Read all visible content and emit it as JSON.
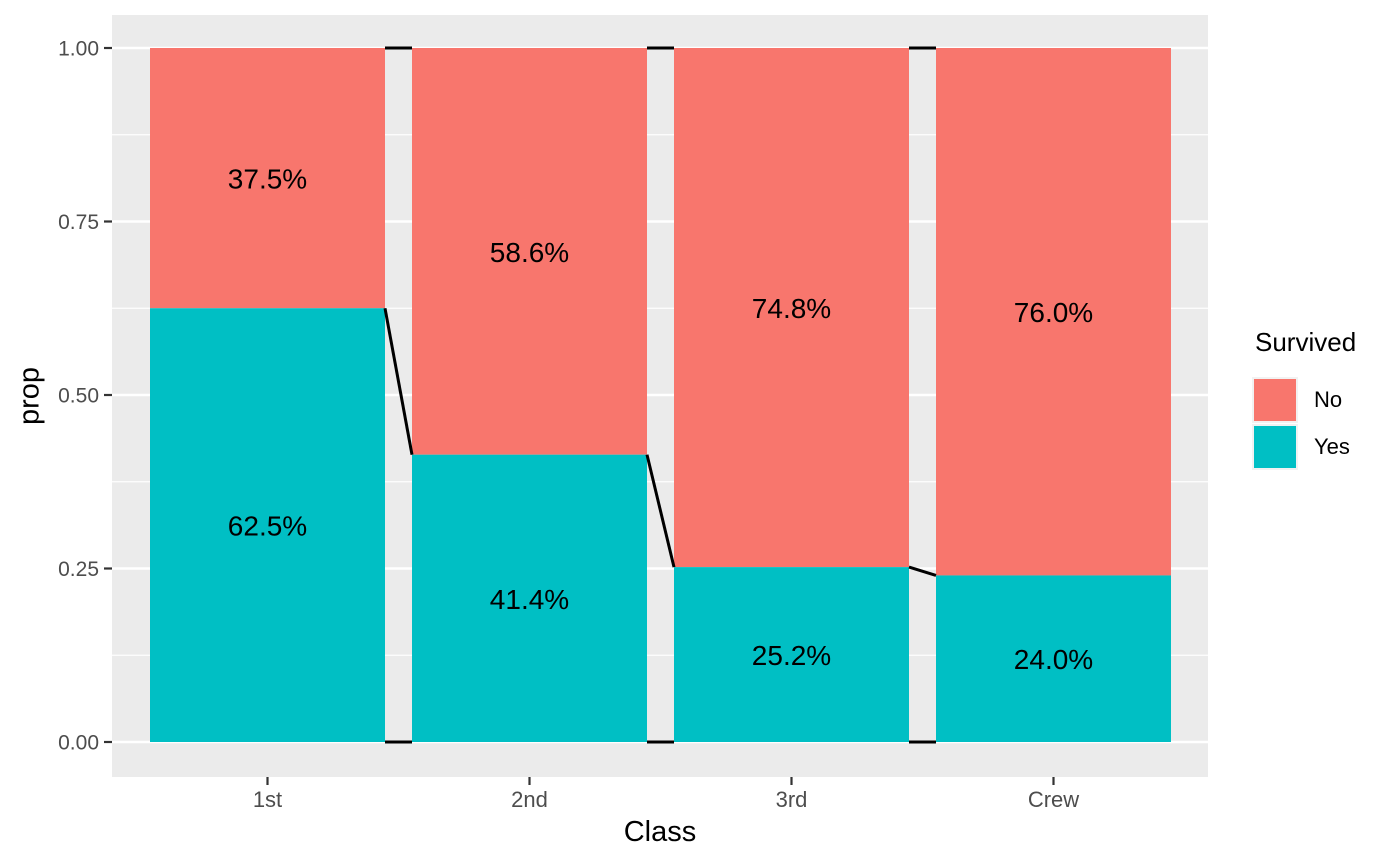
{
  "style": {
    "panel_bg": "#EBEBEB",
    "grid_color": "#FFFFFF",
    "axis_text_color": "#4D4D4D",
    "tick_mark_color": "#333333",
    "label_text_color": "#000000",
    "connector_color": "#000000",
    "legend_key_bg": "#F2F2F2",
    "no_color": "#F8766D",
    "yes_color": "#00BFC4"
  },
  "chart_data": {
    "type": "bar",
    "variant": "stacked-proportion",
    "title": "",
    "xlabel": "Class",
    "ylabel": "prop",
    "categories": [
      "1st",
      "2nd",
      "3rd",
      "Crew"
    ],
    "series": [
      {
        "name": "No",
        "color": "#F8766D",
        "values": [
          0.375,
          0.586,
          0.748,
          0.76
        ],
        "labels": [
          "37.5%",
          "58.6%",
          "74.8%",
          "76.0%"
        ]
      },
      {
        "name": "Yes",
        "color": "#00BFC4",
        "values": [
          0.625,
          0.414,
          0.252,
          0.24
        ],
        "labels": [
          "62.5%",
          "41.4%",
          "25.2%",
          "24.0%"
        ]
      }
    ],
    "legend": {
      "title": "Survived",
      "position": "right",
      "entries": [
        "No",
        "Yes"
      ]
    },
    "y_axis": {
      "ticks": [
        "0.00",
        "0.25",
        "0.50",
        "0.75",
        "1.00"
      ],
      "tick_values": [
        0,
        0.25,
        0.5,
        0.75,
        1.0
      ],
      "minor_values": [
        0.125,
        0.375,
        0.625,
        0.875
      ],
      "ylim": [
        0,
        1
      ]
    },
    "connector_lines": true,
    "grid": true
  }
}
